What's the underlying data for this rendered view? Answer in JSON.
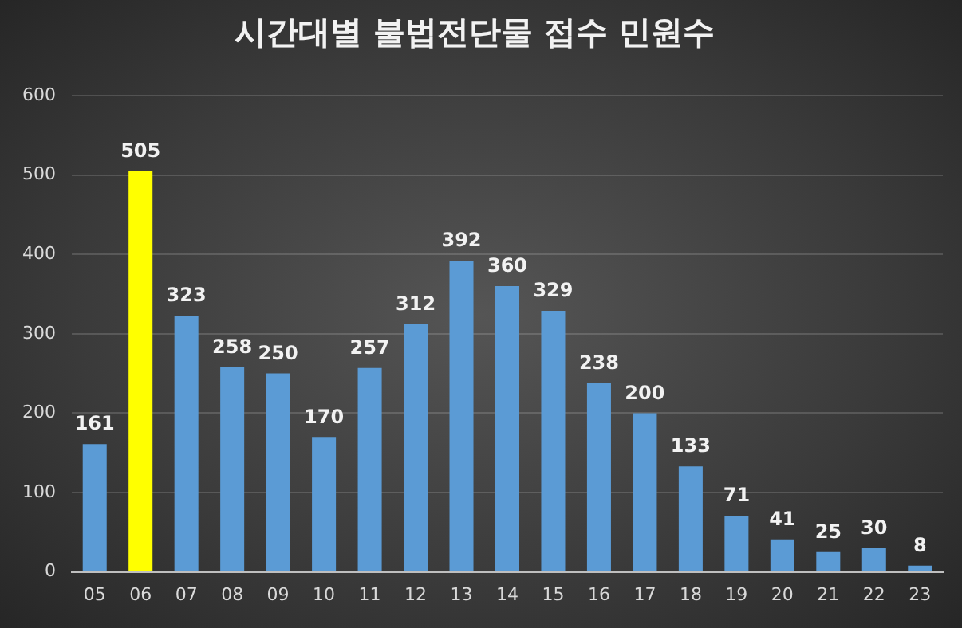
{
  "chart_data": {
    "type": "bar",
    "title": "시간대별 불법전단물 접수 민원수",
    "categories": [
      "05",
      "06",
      "07",
      "08",
      "09",
      "10",
      "11",
      "12",
      "13",
      "14",
      "15",
      "16",
      "17",
      "18",
      "19",
      "20",
      "21",
      "22",
      "23"
    ],
    "values": [
      161,
      505,
      323,
      258,
      250,
      170,
      257,
      312,
      392,
      360,
      329,
      238,
      200,
      133,
      71,
      41,
      25,
      30,
      8
    ],
    "colors": [
      "#5b9bd5",
      "#ffff00",
      "#5b9bd5",
      "#5b9bd5",
      "#5b9bd5",
      "#5b9bd5",
      "#5b9bd5",
      "#5b9bd5",
      "#5b9bd5",
      "#5b9bd5",
      "#5b9bd5",
      "#5b9bd5",
      "#5b9bd5",
      "#5b9bd5",
      "#5b9bd5",
      "#5b9bd5",
      "#5b9bd5",
      "#5b9bd5",
      "#5b9bd5"
    ],
    "ylim": [
      0,
      600
    ],
    "yticks": [
      0,
      100,
      200,
      300,
      400,
      500,
      600
    ],
    "grid": "y",
    "data_labels": true,
    "legend": false
  }
}
